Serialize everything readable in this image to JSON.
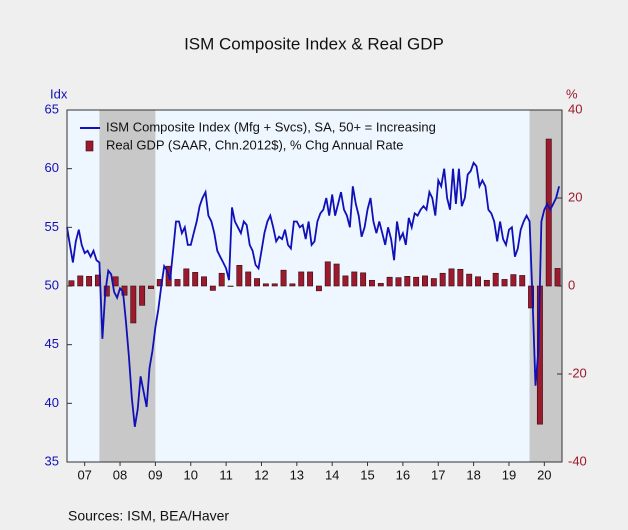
{
  "chart_data": {
    "type": "line_bar",
    "title": "ISM Composite Index & Real GDP",
    "y_label": "Idx",
    "y2_label": "%",
    "source": "Sources:  ISM, BEA/Haver",
    "xlim": [
      2007,
      2021
    ],
    "xticks": [
      {
        "value": 2007.5,
        "label": "07"
      },
      {
        "value": 2008.5,
        "label": "08"
      },
      {
        "value": 2009.5,
        "label": "09"
      },
      {
        "value": 2010.5,
        "label": "10"
      },
      {
        "value": 2011.5,
        "label": "11"
      },
      {
        "value": 2012.5,
        "label": "12"
      },
      {
        "value": 2013.5,
        "label": "13"
      },
      {
        "value": 2014.5,
        "label": "14"
      },
      {
        "value": 2015.5,
        "label": "15"
      },
      {
        "value": 2016.5,
        "label": "16"
      },
      {
        "value": 2017.5,
        "label": "17"
      },
      {
        "value": 2018.5,
        "label": "18"
      },
      {
        "value": 2019.5,
        "label": "19"
      },
      {
        "value": 2020.5,
        "label": "20"
      }
    ],
    "ylim": [
      35,
      65
    ],
    "yticks": [
      35,
      40,
      45,
      50,
      55,
      60,
      65
    ],
    "y2lim": [
      -40,
      40
    ],
    "y2ticks": [
      -40,
      -20,
      0,
      20,
      40
    ],
    "recessions": [
      [
        2007.917,
        2009.5
      ],
      [
        2020.083,
        2021
      ]
    ],
    "series": [
      {
        "name": "ISM Composite Index (Mfg + Svcs), SA, 50+ = Increasing",
        "type": "line",
        "color": "#1010b8",
        "x": [
          2007.0,
          2007.083,
          2007.167,
          2007.25,
          2007.333,
          2007.417,
          2007.5,
          2007.583,
          2007.667,
          2007.75,
          2007.833,
          2007.917,
          2008.0,
          2008.083,
          2008.167,
          2008.25,
          2008.333,
          2008.417,
          2008.5,
          2008.583,
          2008.667,
          2008.75,
          2008.833,
          2008.917,
          2009.0,
          2009.083,
          2009.167,
          2009.25,
          2009.333,
          2009.417,
          2009.5,
          2009.583,
          2009.667,
          2009.75,
          2009.833,
          2009.917,
          2010.0,
          2010.083,
          2010.167,
          2010.25,
          2010.333,
          2010.417,
          2010.5,
          2010.583,
          2010.667,
          2010.75,
          2010.833,
          2010.917,
          2011.0,
          2011.083,
          2011.167,
          2011.25,
          2011.333,
          2011.417,
          2011.5,
          2011.583,
          2011.667,
          2011.75,
          2011.833,
          2011.917,
          2012.0,
          2012.083,
          2012.167,
          2012.25,
          2012.333,
          2012.417,
          2012.5,
          2012.583,
          2012.667,
          2012.75,
          2012.833,
          2012.917,
          2013.0,
          2013.083,
          2013.167,
          2013.25,
          2013.333,
          2013.417,
          2013.5,
          2013.583,
          2013.667,
          2013.75,
          2013.833,
          2013.917,
          2014.0,
          2014.083,
          2014.167,
          2014.25,
          2014.333,
          2014.417,
          2014.5,
          2014.583,
          2014.667,
          2014.75,
          2014.833,
          2014.917,
          2015.0,
          2015.083,
          2015.167,
          2015.25,
          2015.333,
          2015.417,
          2015.5,
          2015.583,
          2015.667,
          2015.75,
          2015.833,
          2015.917,
          2016.0,
          2016.083,
          2016.167,
          2016.25,
          2016.333,
          2016.417,
          2016.5,
          2016.583,
          2016.667,
          2016.75,
          2016.833,
          2016.917,
          2017.0,
          2017.083,
          2017.167,
          2017.25,
          2017.333,
          2017.417,
          2017.5,
          2017.583,
          2017.667,
          2017.75,
          2017.833,
          2017.917,
          2018.0,
          2018.083,
          2018.167,
          2018.25,
          2018.333,
          2018.417,
          2018.5,
          2018.583,
          2018.667,
          2018.75,
          2018.833,
          2018.917,
          2019.0,
          2019.083,
          2019.167,
          2019.25,
          2019.333,
          2019.417,
          2019.5,
          2019.583,
          2019.667,
          2019.75,
          2019.833,
          2019.917,
          2020.0,
          2020.083,
          2020.167,
          2020.25,
          2020.333,
          2020.417,
          2020.5,
          2020.583,
          2020.667,
          2020.75,
          2020.833,
          2020.917
        ],
        "values": [
          55,
          53.5,
          52,
          53.8,
          54.8,
          53.5,
          52.8,
          53,
          52.5,
          53,
          52.2,
          52,
          45.5,
          49.5,
          51.3,
          51,
          49.5,
          49,
          49.8,
          49.5,
          47,
          44,
          40.5,
          38,
          39.5,
          42.3,
          41,
          39.7,
          43,
          44.5,
          46.5,
          48,
          50,
          51.7,
          51.3,
          50.5,
          53,
          55.5,
          55.5,
          54.5,
          55,
          53.5,
          53.5,
          54.5,
          55.5,
          56.8,
          57.5,
          58,
          56,
          55.5,
          54.5,
          53,
          52.5,
          52,
          51.5,
          50.5,
          56.7,
          55.5,
          55,
          54.5,
          55.5,
          55.2,
          53.5,
          53,
          51.8,
          51.5,
          53,
          54.5,
          55.5,
          56,
          55,
          53.8,
          54.2,
          54,
          54.8,
          53.5,
          53.2,
          55.5,
          55.5,
          55,
          55.2,
          54,
          55.5,
          53.5,
          53.8,
          55.5,
          56.2,
          56.5,
          57.5,
          56,
          57.8,
          56,
          57,
          58,
          56.5,
          56,
          55,
          58.5,
          57,
          56,
          54.2,
          55,
          56.5,
          57.5,
          55.5,
          54.5,
          55.5,
          54.5,
          53.5,
          55,
          54,
          52.2,
          55.5,
          54,
          54.5,
          53.5,
          55.8,
          55,
          56.2,
          56,
          56.5,
          56.8,
          56.5,
          58,
          57.5,
          56,
          59,
          58.5,
          60,
          57.5,
          56.5,
          60,
          57,
          60,
          56.8,
          57.5,
          59.5,
          59.8,
          60.5,
          60.2,
          58.5,
          59,
          58.5,
          56.5,
          56.2,
          55.5,
          53.8,
          55.5,
          54,
          53.5,
          54.8,
          55,
          52.5,
          53.2,
          54.8,
          55.5,
          56,
          55.5,
          49,
          41.5,
          44.5,
          55.5,
          56.5,
          57,
          56.5,
          57,
          57.5,
          58.5
        ]
      },
      {
        "name": "Real GDP (SAAR, Chn.2012$), % Chg Annual Rate",
        "type": "bar",
        "axis": "y2",
        "color": "#9b1a2c",
        "x": [
          2007.125,
          2007.375,
          2007.625,
          2007.875,
          2008.125,
          2008.375,
          2008.625,
          2008.875,
          2009.125,
          2009.375,
          2009.625,
          2009.875,
          2010.125,
          2010.375,
          2010.625,
          2010.875,
          2011.125,
          2011.375,
          2011.625,
          2011.875,
          2012.125,
          2012.375,
          2012.625,
          2012.875,
          2013.125,
          2013.375,
          2013.625,
          2013.875,
          2014.125,
          2014.375,
          2014.625,
          2014.875,
          2015.125,
          2015.375,
          2015.625,
          2015.875,
          2016.125,
          2016.375,
          2016.625,
          2016.875,
          2017.125,
          2017.375,
          2017.625,
          2017.875,
          2018.125,
          2018.375,
          2018.625,
          2018.875,
          2019.125,
          2019.375,
          2019.625,
          2019.875,
          2020.125,
          2020.375,
          2020.625,
          2020.875
        ],
        "values": [
          1.2,
          2.3,
          2.2,
          2.5,
          -2.3,
          2.1,
          -2.1,
          -8.4,
          -4.4,
          -0.6,
          1.5,
          4.5,
          1.5,
          3.9,
          3.1,
          2.1,
          -1.0,
          2.9,
          -0.1,
          4.7,
          3.2,
          1.7,
          0.5,
          0.5,
          3.6,
          0.5,
          3.2,
          3.2,
          -1.1,
          5.5,
          5.0,
          2.3,
          3.2,
          3.0,
          1.3,
          0.6,
          2.0,
          1.9,
          2.2,
          2.0,
          2.3,
          1.7,
          2.9,
          3.9,
          3.8,
          2.7,
          2.1,
          1.3,
          2.9,
          1.5,
          2.6,
          2.4,
          -5.0,
          -31.4,
          33.4,
          4.0
        ]
      }
    ]
  }
}
